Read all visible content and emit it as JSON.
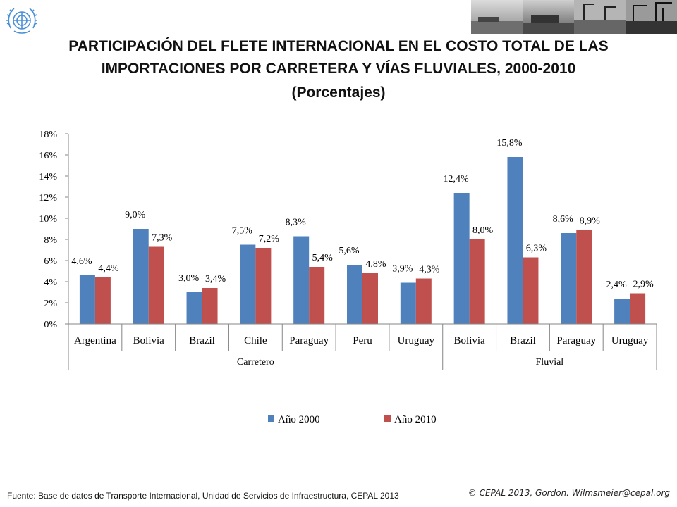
{
  "header": {
    "title_line1": "PARTICIPACIÓN DEL FLETE INTERNACIONAL EN EL COSTO TOTAL DE LAS",
    "title_line2": "IMPORTACIONES POR CARRETERA Y VÍAS FLUVIALES, 2000-2010",
    "subtitle": "(Porcentajes)"
  },
  "footer": {
    "source": "Fuente: Base de datos de Transporte Internacional, Unidad de Servicios de Infraestructura, CEPAL 2013",
    "copyright": "© CEPAL 2013, Gordon. Wilmsmeier@cepal.org"
  },
  "colors": {
    "series_2000": "#4F81BD",
    "series_2010": "#C0504D",
    "logo": "#4A8FD8"
  },
  "chart_data": {
    "type": "bar",
    "title": "PARTICIPACIÓN DEL FLETE INTERNACIONAL EN EL COSTO TOTAL DE LAS IMPORTACIONES POR CARRETERA Y VÍAS FLUVIALES, 2000-2010",
    "subtitle": "(Porcentajes)",
    "categories": [
      "Argentina",
      "Bolivia",
      "Brazil",
      "Chile",
      "Paraguay",
      "Peru",
      "Uruguay",
      "Bolivia",
      "Brazil",
      "Paraguay",
      "Uruguay"
    ],
    "groups": [
      {
        "label": "Carretero",
        "count": 7
      },
      {
        "label": "Fluvial",
        "count": 4
      }
    ],
    "series": [
      {
        "name": "Año 2000",
        "values": [
          4.6,
          9.0,
          3.0,
          7.5,
          8.3,
          5.6,
          3.9,
          12.4,
          15.8,
          8.6,
          2.4
        ],
        "labels": [
          "4,6%",
          "9,0%",
          "3,0%",
          "7,5%",
          "8,3%",
          "5,6%",
          "3,9%",
          "12,4%",
          "15,8%",
          "8,6%",
          "2,4%"
        ]
      },
      {
        "name": "Año 2010",
        "values": [
          4.4,
          7.3,
          3.4,
          7.2,
          5.4,
          4.8,
          4.3,
          8.0,
          6.3,
          8.9,
          2.9
        ],
        "labels": [
          "4,4%",
          "7,3%",
          "3,4%",
          "7,2%",
          "5,4%",
          "4,8%",
          "4,3%",
          "8,0%",
          "6,3%",
          "8,9%",
          "2,9%"
        ]
      }
    ],
    "yticks": [
      {
        "value": 0,
        "label": "0%"
      },
      {
        "value": 2,
        "label": "2%"
      },
      {
        "value": 4,
        "label": "4%"
      },
      {
        "value": 6,
        "label": "6%"
      },
      {
        "value": 8,
        "label": "8%"
      },
      {
        "value": 10,
        "label": "10%"
      },
      {
        "value": 12,
        "label": "12%"
      },
      {
        "value": 14,
        "label": "14%"
      },
      {
        "value": 16,
        "label": "16%"
      },
      {
        "value": 18,
        "label": "18%"
      }
    ],
    "ylim": [
      0,
      18
    ],
    "xlabel": "",
    "ylabel": "",
    "grid": false,
    "legend": "bottom"
  }
}
